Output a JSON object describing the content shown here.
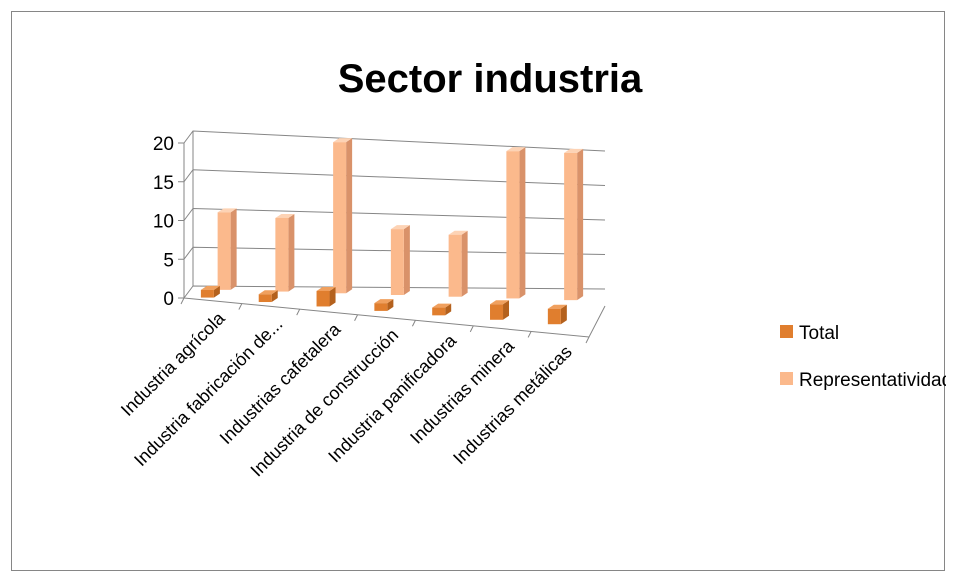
{
  "chart_data": {
    "type": "bar",
    "title": "Sector industria",
    "categories": [
      "Industria agrícola",
      "Industria fabricación de...",
      "Industrias cafetalera",
      "Industria de construcción",
      "Industria panificadora",
      "Industrias minera",
      "Industrias metálicas"
    ],
    "series": [
      {
        "name": "Total",
        "values": [
          1,
          1,
          2,
          1,
          1,
          2,
          2
        ]
      },
      {
        "name": "Representatividad %",
        "values": [
          10,
          9.5,
          19.5,
          8.5,
          8,
          19,
          19
        ]
      }
    ],
    "yticks": [
      "0",
      "5",
      "10",
      "15",
      "20"
    ],
    "ylim": [
      0,
      20
    ],
    "grid": true,
    "legend_position": "right",
    "colors": {
      "series": [
        "#E07E2E",
        "#FBB98C"
      ],
      "series_side": [
        "#B4611D",
        "#D9926A"
      ],
      "series_top": [
        "#F0A05E",
        "#FDD3B5"
      ]
    }
  }
}
